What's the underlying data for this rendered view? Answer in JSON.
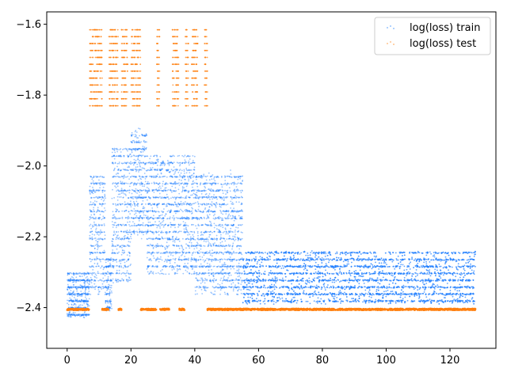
{
  "chart_data": {
    "type": "scatter",
    "title": "",
    "xlabel": "",
    "ylabel": "",
    "xlim": [
      -6.4,
      134.4
    ],
    "ylim": [
      -2.515,
      -1.565
    ],
    "x_ticks": [
      0,
      20,
      40,
      60,
      80,
      100,
      120
    ],
    "x_tick_labels": [
      "0",
      "20",
      "40",
      "60",
      "80",
      "100",
      "120"
    ],
    "y_ticks": [
      -1.6,
      -1.8,
      -2.0,
      -2.2,
      -2.4
    ],
    "y_tick_labels": [
      "−1.6",
      "−1.8",
      "−2.0",
      "−2.2",
      "−2.4"
    ],
    "grid": false,
    "legend_position": "top-right",
    "series": [
      {
        "name": "log(loss) train",
        "color": "#1f7fff",
        "marker": "dense point cloud",
        "note_points": "representative band summary",
        "bands": [
          {
            "x": [
              0,
              7
            ],
            "y": [
              -2.43,
              -2.3
            ]
          },
          {
            "x": [
              7,
              12
            ],
            "y": [
              -2.36,
              -2.03
            ]
          },
          {
            "x": [
              12,
              14
            ],
            "y": [
              -2.41,
              -2.26
            ]
          },
          {
            "x": [
              14,
              20
            ],
            "y": [
              -2.33,
              -1.95
            ]
          },
          {
            "x": [
              20,
              25
            ],
            "y": [
              -2.2,
              -1.9
            ]
          },
          {
            "x": [
              25,
              40
            ],
            "y": [
              -2.3,
              -1.97
            ]
          },
          {
            "x": [
              40,
              55
            ],
            "y": [
              -2.36,
              -2.02
            ]
          },
          {
            "x": [
              55,
              128
            ],
            "y": [
              -2.39,
              -2.24
            ]
          }
        ]
      },
      {
        "name": "log(loss) test",
        "color": "#ff7f0e",
        "marker": "dense point cloud",
        "baseline_y": -2.405,
        "upper_y": [
          -1.6,
          -1.83
        ],
        "upper_x_segments": [
          [
            7,
            11
          ],
          [
            13,
            16
          ],
          [
            17,
            19
          ],
          [
            20,
            23
          ],
          [
            28,
            29
          ],
          [
            33,
            35
          ],
          [
            37,
            38
          ],
          [
            39,
            41
          ],
          [
            43,
            44
          ]
        ],
        "baseline_x_segments": [
          [
            0,
            7
          ],
          [
            11,
            13
          ],
          [
            16,
            17
          ],
          [
            23,
            28
          ],
          [
            29,
            32
          ],
          [
            35,
            37
          ],
          [
            44,
            128
          ]
        ]
      }
    ]
  }
}
